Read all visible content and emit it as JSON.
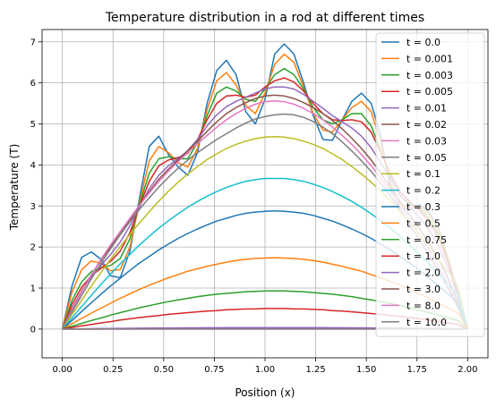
{
  "chart_data": {
    "type": "line",
    "title": "Temperature distribution in a rod at different times",
    "xlabel": "Position (x)",
    "ylabel": "Temperature (T)",
    "xlim": [
      -0.1,
      2.1
    ],
    "ylim": [
      -0.7,
      7.3
    ],
    "xticks": [
      0.0,
      0.25,
      0.5,
      0.75,
      1.0,
      1.25,
      1.5,
      1.75,
      2.0
    ],
    "xtick_labels": [
      "0.00",
      "0.25",
      "0.50",
      "0.75",
      "1.00",
      "1.25",
      "1.50",
      "1.75",
      "2.00"
    ],
    "yticks": [
      0,
      1,
      2,
      3,
      4,
      5,
      6,
      7
    ],
    "ytick_labels": [
      "0",
      "1",
      "2",
      "3",
      "4",
      "5",
      "6",
      "7"
    ],
    "grid": true,
    "legend_position": "right",
    "x": [
      0.0,
      0.0476,
      0.0952,
      0.1429,
      0.1905,
      0.2381,
      0.2857,
      0.3333,
      0.381,
      0.4286,
      0.4762,
      0.5238,
      0.5714,
      0.619,
      0.6667,
      0.7143,
      0.7619,
      0.8095,
      0.8571,
      0.9048,
      0.9524,
      1.0,
      1.0476,
      1.0952,
      1.1429,
      1.1905,
      1.2381,
      1.2857,
      1.3333,
      1.381,
      1.4286,
      1.4762,
      1.5238,
      1.5714,
      1.619,
      1.6667,
      1.7143,
      1.7619,
      1.8095,
      1.8571,
      1.9048,
      1.9524,
      2.0
    ],
    "series": [
      {
        "name": "t = 0.0",
        "color": "#1f77b4",
        "values": [
          0.0,
          1.05,
          1.75,
          1.88,
          1.7,
          1.3,
          1.25,
          1.9,
          3.2,
          4.45,
          4.7,
          4.25,
          3.95,
          3.75,
          4.3,
          5.5,
          6.3,
          6.55,
          6.2,
          5.3,
          5.0,
          5.6,
          6.7,
          6.95,
          6.7,
          6.0,
          5.2,
          4.62,
          4.6,
          5.1,
          5.55,
          5.75,
          5.5,
          4.7,
          3.4,
          2.95,
          2.9,
          3.05,
          2.85,
          2.45,
          1.7,
          0.9,
          0.0
        ]
      },
      {
        "name": "t = 0.001",
        "color": "#ff7f0e",
        "values": [
          0.0,
          0.9,
          1.45,
          1.66,
          1.6,
          1.42,
          1.45,
          2.0,
          3.1,
          4.1,
          4.45,
          4.3,
          4.05,
          3.95,
          4.4,
          5.35,
          6.05,
          6.25,
          5.95,
          5.45,
          5.25,
          5.75,
          6.45,
          6.7,
          6.5,
          5.9,
          5.25,
          4.85,
          4.8,
          5.1,
          5.4,
          5.55,
          5.3,
          4.55,
          3.55,
          3.05,
          2.95,
          3.0,
          2.8,
          2.4,
          1.7,
          0.85,
          0.0
        ]
      },
      {
        "name": "t = 0.003",
        "color": "#2ca02c",
        "values": [
          0.0,
          0.7,
          1.15,
          1.4,
          1.5,
          1.55,
          1.72,
          2.2,
          3.05,
          3.8,
          4.15,
          4.2,
          4.15,
          4.15,
          4.55,
          5.2,
          5.75,
          5.9,
          5.8,
          5.6,
          5.55,
          5.85,
          6.2,
          6.35,
          6.2,
          5.85,
          5.4,
          5.1,
          5.0,
          5.1,
          5.25,
          5.25,
          4.95,
          4.35,
          3.7,
          3.25,
          3.05,
          2.95,
          2.7,
          2.3,
          1.65,
          0.85,
          0.0
        ]
      },
      {
        "name": "t = 0.005",
        "color": "#d62728",
        "values": [
          0.0,
          0.6,
          1.02,
          1.3,
          1.48,
          1.65,
          1.9,
          2.35,
          3.0,
          3.6,
          3.98,
          4.12,
          4.18,
          4.28,
          4.62,
          5.1,
          5.5,
          5.68,
          5.7,
          5.65,
          5.7,
          5.9,
          6.05,
          6.12,
          6.02,
          5.8,
          5.5,
          5.25,
          5.1,
          5.08,
          5.1,
          5.05,
          4.8,
          4.3,
          3.78,
          3.35,
          3.1,
          2.9,
          2.62,
          2.22,
          1.6,
          0.82,
          0.0
        ]
      },
      {
        "name": "t = 0.01",
        "color": "#9467bd",
        "values": [
          0.0,
          0.5,
          0.92,
          1.28,
          1.55,
          1.82,
          2.12,
          2.52,
          2.98,
          3.42,
          3.75,
          3.98,
          4.15,
          4.35,
          4.62,
          4.95,
          5.22,
          5.42,
          5.55,
          5.65,
          5.75,
          5.85,
          5.9,
          5.9,
          5.85,
          5.72,
          5.55,
          5.38,
          5.2,
          5.05,
          4.9,
          4.7,
          4.42,
          4.05,
          3.65,
          3.28,
          2.98,
          2.72,
          2.42,
          2.02,
          1.48,
          0.78,
          0.0
        ]
      },
      {
        "name": "t = 0.02",
        "color": "#8c564b",
        "values": [
          0.0,
          0.48,
          0.92,
          1.32,
          1.68,
          2.0,
          2.32,
          2.65,
          3.02,
          3.35,
          3.65,
          3.9,
          4.12,
          4.35,
          4.58,
          4.82,
          5.05,
          5.25,
          5.4,
          5.52,
          5.62,
          5.68,
          5.7,
          5.68,
          5.62,
          5.52,
          5.4,
          5.25,
          5.08,
          4.88,
          4.65,
          4.4,
          4.12,
          3.8,
          3.45,
          3.1,
          2.78,
          2.45,
          2.1,
          1.7,
          1.22,
          0.65,
          0.0
        ]
      },
      {
        "name": "t = 0.03",
        "color": "#e377c2",
        "values": [
          0.0,
          0.46,
          0.9,
          1.32,
          1.7,
          2.05,
          2.38,
          2.7,
          3.02,
          3.32,
          3.6,
          3.85,
          4.08,
          4.3,
          4.52,
          4.72,
          4.92,
          5.1,
          5.25,
          5.38,
          5.48,
          5.54,
          5.56,
          5.54,
          5.48,
          5.38,
          5.25,
          5.1,
          4.92,
          4.72,
          4.5,
          4.25,
          3.98,
          3.68,
          3.35,
          3.0,
          2.65,
          2.3,
          1.92,
          1.52,
          1.08,
          0.56,
          0.0
        ]
      },
      {
        "name": "t = 0.05",
        "color": "#7f7f7f",
        "values": [
          0.0,
          0.41,
          0.82,
          1.22,
          1.6,
          1.96,
          2.3,
          2.62,
          2.92,
          3.2,
          3.46,
          3.7,
          3.92,
          4.12,
          4.3,
          4.46,
          4.62,
          4.76,
          4.9,
          5.02,
          5.12,
          5.18,
          5.22,
          5.24,
          5.22,
          5.16,
          5.06,
          4.92,
          4.76,
          4.56,
          4.34,
          4.1,
          3.84,
          3.56,
          3.24,
          2.9,
          2.54,
          2.18,
          1.8,
          1.4,
          0.98,
          0.52,
          0.0
        ]
      },
      {
        "name": "t = 0.1",
        "color": "#bcbd22",
        "values": [
          0.0,
          0.35,
          0.7,
          1.05,
          1.38,
          1.7,
          2.01,
          2.31,
          2.59,
          2.86,
          3.12,
          3.36,
          3.58,
          3.78,
          3.96,
          4.13,
          4.27,
          4.4,
          4.5,
          4.58,
          4.64,
          4.68,
          4.69,
          4.68,
          4.64,
          4.58,
          4.5,
          4.4,
          4.27,
          4.13,
          3.96,
          3.78,
          3.58,
          3.36,
          3.12,
          2.86,
          2.59,
          2.31,
          2.01,
          1.7,
          1.38,
          1.05,
          0.0
        ]
      },
      {
        "name": "t = 0.2",
        "color": "#17becf",
        "values": [
          0.0,
          0.27,
          0.55,
          0.82,
          1.09,
          1.34,
          1.59,
          1.82,
          2.05,
          2.26,
          2.46,
          2.64,
          2.81,
          2.97,
          3.11,
          3.24,
          3.35,
          3.45,
          3.53,
          3.6,
          3.64,
          3.67,
          3.67,
          3.67,
          3.64,
          3.6,
          3.53,
          3.45,
          3.35,
          3.24,
          3.11,
          2.97,
          2.81,
          2.64,
          2.46,
          2.26,
          2.05,
          1.82,
          1.59,
          1.34,
          1.09,
          0.82,
          0.0
        ]
      },
      {
        "name": "t = 0.3",
        "color": "#1f77b4",
        "values": [
          0.0,
          0.21,
          0.43,
          0.64,
          0.85,
          1.05,
          1.24,
          1.43,
          1.61,
          1.77,
          1.93,
          2.07,
          2.21,
          2.33,
          2.44,
          2.54,
          2.63,
          2.7,
          2.77,
          2.82,
          2.85,
          2.87,
          2.88,
          2.87,
          2.85,
          2.82,
          2.77,
          2.7,
          2.63,
          2.54,
          2.44,
          2.33,
          2.21,
          2.07,
          1.93,
          1.77,
          1.61,
          1.43,
          1.24,
          1.05,
          0.85,
          0.64,
          0.0
        ]
      },
      {
        "name": "t = 0.5",
        "color": "#ff7f0e",
        "values": [
          0.0,
          0.13,
          0.26,
          0.39,
          0.51,
          0.63,
          0.75,
          0.86,
          0.97,
          1.07,
          1.16,
          1.25,
          1.33,
          1.41,
          1.47,
          1.53,
          1.58,
          1.63,
          1.67,
          1.7,
          1.72,
          1.73,
          1.74,
          1.73,
          1.72,
          1.7,
          1.67,
          1.63,
          1.58,
          1.53,
          1.47,
          1.41,
          1.33,
          1.25,
          1.16,
          1.07,
          0.97,
          0.86,
          0.75,
          0.63,
          0.51,
          0.39,
          0.0
        ]
      },
      {
        "name": "t = 0.75",
        "color": "#2ca02c",
        "values": [
          0.0,
          0.07,
          0.14,
          0.21,
          0.27,
          0.34,
          0.4,
          0.46,
          0.52,
          0.57,
          0.62,
          0.67,
          0.71,
          0.75,
          0.79,
          0.82,
          0.85,
          0.87,
          0.89,
          0.91,
          0.92,
          0.93,
          0.93,
          0.93,
          0.92,
          0.91,
          0.89,
          0.87,
          0.85,
          0.82,
          0.79,
          0.75,
          0.71,
          0.67,
          0.62,
          0.57,
          0.52,
          0.46,
          0.4,
          0.34,
          0.27,
          0.21,
          0.0
        ]
      },
      {
        "name": "t = 1.0",
        "color": "#d62728",
        "values": [
          0.0,
          0.04,
          0.08,
          0.11,
          0.15,
          0.18,
          0.22,
          0.25,
          0.28,
          0.31,
          0.33,
          0.36,
          0.38,
          0.4,
          0.42,
          0.44,
          0.45,
          0.47,
          0.48,
          0.49,
          0.49,
          0.5,
          0.5,
          0.5,
          0.49,
          0.49,
          0.48,
          0.47,
          0.45,
          0.44,
          0.42,
          0.4,
          0.38,
          0.36,
          0.33,
          0.31,
          0.28,
          0.25,
          0.22,
          0.18,
          0.15,
          0.11,
          0.0
        ]
      },
      {
        "name": "t = 2.0",
        "color": "#9467bd",
        "values": [
          0.0,
          0.003,
          0.006,
          0.009,
          0.012,
          0.015,
          0.017,
          0.019,
          0.021,
          0.023,
          0.025,
          0.027,
          0.028,
          0.03,
          0.031,
          0.032,
          0.033,
          0.034,
          0.035,
          0.035,
          0.036,
          0.036,
          0.036,
          0.036,
          0.036,
          0.035,
          0.035,
          0.034,
          0.033,
          0.032,
          0.031,
          0.03,
          0.028,
          0.027,
          0.025,
          0.023,
          0.021,
          0.019,
          0.017,
          0.015,
          0.012,
          0.009,
          0.0
        ]
      },
      {
        "name": "t = 3.0",
        "color": "#8c564b",
        "values": [
          0.0,
          0.0002,
          0.0004,
          0.0006,
          0.0008,
          0.001,
          0.0012,
          0.0013,
          0.0015,
          0.0016,
          0.0017,
          0.0018,
          0.0019,
          0.002,
          0.0021,
          0.0022,
          0.0023,
          0.0023,
          0.0024,
          0.0024,
          0.0025,
          0.0025,
          0.0025,
          0.0025,
          0.0025,
          0.0024,
          0.0024,
          0.0023,
          0.0023,
          0.0022,
          0.0021,
          0.002,
          0.0019,
          0.0018,
          0.0017,
          0.0016,
          0.0015,
          0.0013,
          0.0012,
          0.001,
          0.0008,
          0.0006,
          0.0
        ]
      },
      {
        "name": "t = 8.0",
        "color": "#e377c2",
        "values": [
          0.0,
          0.0,
          0.0,
          0.0,
          0.0,
          0.0,
          0.0,
          0.0,
          0.0,
          0.0,
          0.0,
          0.0,
          0.0,
          0.0,
          0.0,
          0.0,
          0.0,
          0.0,
          0.0,
          0.0,
          0.0,
          0.0,
          0.0,
          0.0,
          0.0,
          0.0,
          0.0,
          0.0,
          0.0,
          0.0,
          0.0,
          0.0,
          0.0,
          0.0,
          0.0,
          0.0,
          0.0,
          0.0,
          0.0,
          0.0,
          0.0,
          0.0,
          0.0
        ]
      },
      {
        "name": "t = 10.0",
        "color": "#7f7f7f",
        "values": [
          0.0,
          0.0,
          0.0,
          0.0,
          0.0,
          0.0,
          0.0,
          0.0,
          0.0,
          0.0,
          0.0,
          0.0,
          0.0,
          0.0,
          0.0,
          0.0,
          0.0,
          0.0,
          0.0,
          0.0,
          0.0,
          0.0,
          0.0,
          0.0,
          0.0,
          0.0,
          0.0,
          0.0,
          0.0,
          0.0,
          0.0,
          0.0,
          0.0,
          0.0,
          0.0,
          0.0,
          0.0,
          0.0,
          0.0,
          0.0,
          0.0,
          0.0,
          0.0
        ]
      }
    ]
  }
}
